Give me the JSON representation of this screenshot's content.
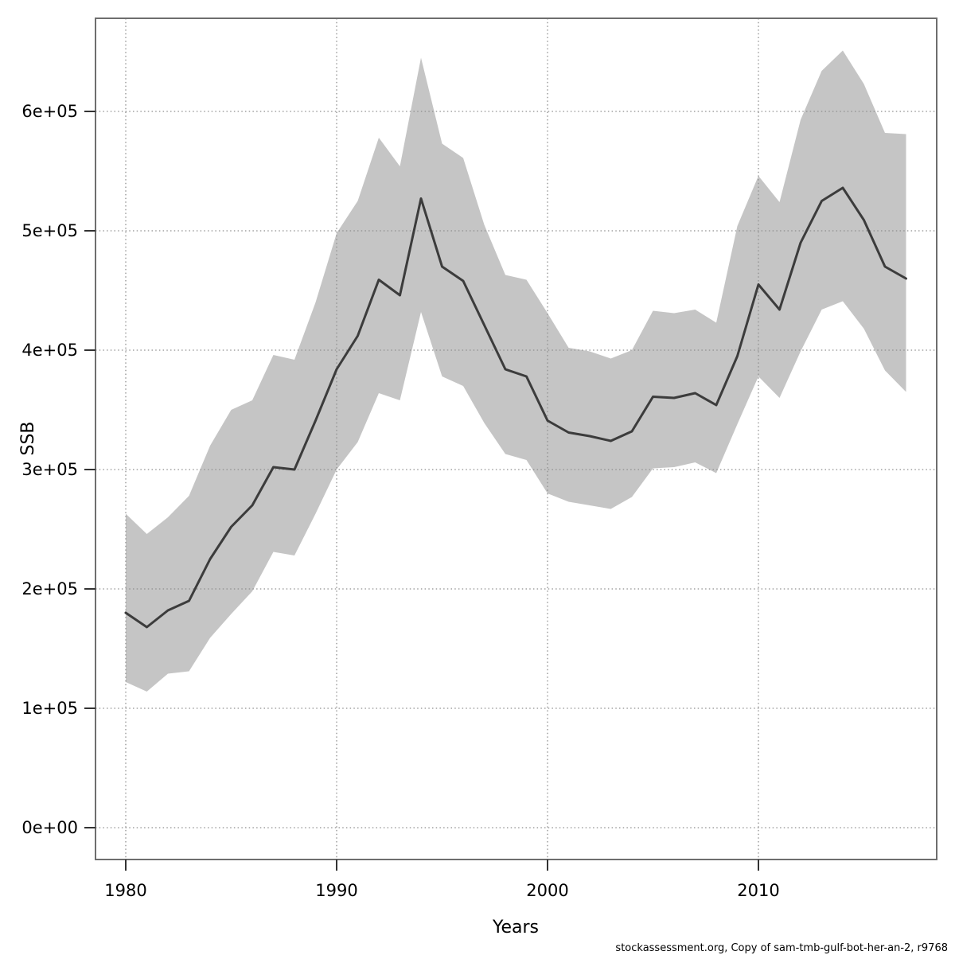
{
  "chart_data": {
    "type": "area",
    "title": "",
    "xlabel": "Years",
    "ylabel": "SSB",
    "grid": "dotted",
    "legend": "none",
    "xlim": [
      1978.6,
      2018.4
    ],
    "ylim": [
      -26000,
      678000
    ],
    "x": [
      1980,
      1981,
      1982,
      1983,
      1984,
      1985,
      1986,
      1987,
      1988,
      1989,
      1990,
      1991,
      1992,
      1993,
      1994,
      1995,
      1996,
      1997,
      1998,
      1999,
      2000,
      2001,
      2002,
      2003,
      2004,
      2005,
      2006,
      2007,
      2008,
      2009,
      2010,
      2011,
      2012,
      2013,
      2014,
      2015,
      2016,
      2017
    ],
    "series": [
      {
        "name": "SSB estimate",
        "values": [
          180000,
          168000,
          182000,
          190000,
          225000,
          252000,
          270000,
          302000,
          300000,
          341000,
          384000,
          412000,
          459000,
          446000,
          527000,
          470000,
          458000,
          421000,
          384000,
          378000,
          341000,
          331000,
          328000,
          324000,
          332000,
          361000,
          360000,
          364000,
          354000,
          395000,
          455000,
          434000,
          490000,
          525000,
          536000,
          509000,
          470000,
          460000
        ]
      },
      {
        "name": "upper confidence bound",
        "values": [
          263000,
          246000,
          260000,
          278000,
          320000,
          350000,
          358000,
          396000,
          392000,
          440000,
          498000,
          525000,
          578000,
          554000,
          645000,
          573000,
          561000,
          505000,
          463000,
          459000,
          431000,
          402000,
          399000,
          393000,
          400000,
          433000,
          431000,
          434000,
          423000,
          504000,
          546000,
          524000,
          593000,
          634000,
          651000,
          623000,
          582000,
          581000
        ]
      },
      {
        "name": "lower confidence bound",
        "values": [
          122000,
          114000,
          129000,
          131000,
          159000,
          179000,
          198000,
          231000,
          228000,
          263000,
          300000,
          323000,
          364000,
          358000,
          432000,
          378000,
          370000,
          339000,
          313000,
          308000,
          280000,
          273000,
          270000,
          267000,
          277000,
          301000,
          302000,
          306000,
          297000,
          338000,
          378000,
          360000,
          399000,
          434000,
          441000,
          418000,
          383000,
          365000
        ]
      }
    ],
    "x_ticks": [
      {
        "value": 1980,
        "label": "1980"
      },
      {
        "value": 1990,
        "label": "1990"
      },
      {
        "value": 2000,
        "label": "2000"
      },
      {
        "value": 2010,
        "label": "2010"
      }
    ],
    "y_ticks": [
      {
        "value": 0,
        "label": "0e+00"
      },
      {
        "value": 100000,
        "label": "1e+05"
      },
      {
        "value": 200000,
        "label": "2e+05"
      },
      {
        "value": 300000,
        "label": "3e+05"
      },
      {
        "value": 400000,
        "label": "4e+05"
      },
      {
        "value": 500000,
        "label": "5e+05"
      },
      {
        "value": 600000,
        "label": "6e+05"
      }
    ]
  },
  "axes": {
    "x_label": "Years",
    "y_label": "SSB"
  },
  "footer": {
    "text": "stockassessment.org, Copy of  sam-tmb-gulf-bot-her-an-2, r9768"
  },
  "style": {
    "band_color": "#c5c5c5",
    "line_color": "#3c3c3c",
    "grid_color": "#8f8f8f",
    "border_color": "#6e6e6e",
    "tick_color": "#333333",
    "text_color": "#000000",
    "background": "#ffffff"
  }
}
